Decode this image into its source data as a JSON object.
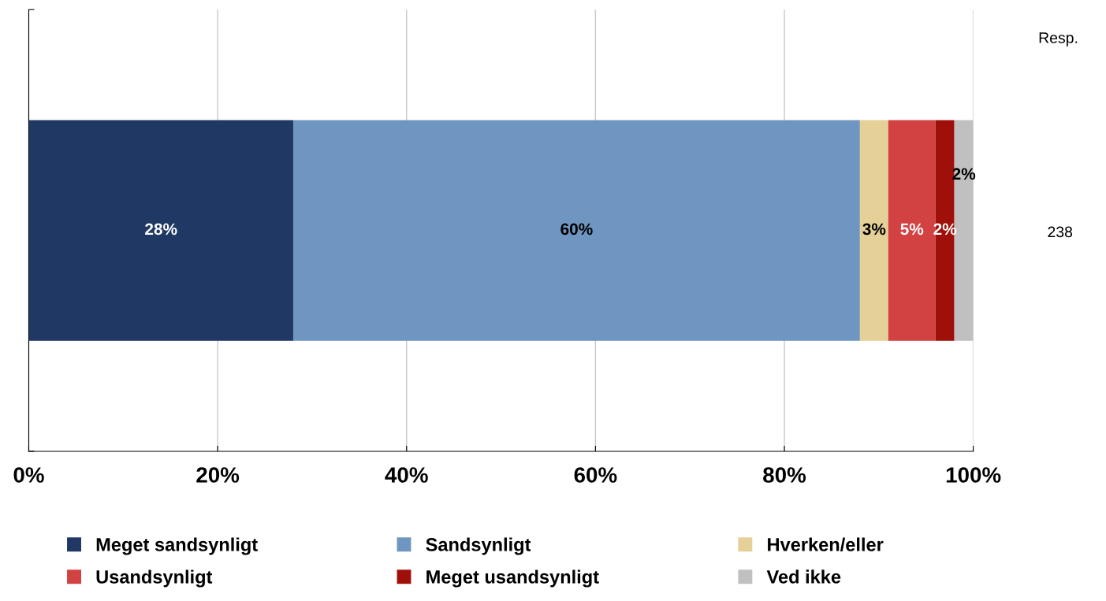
{
  "chart_data": {
    "type": "bar",
    "orientation": "horizontal",
    "stacked": true,
    "categories": [
      null
    ],
    "series": [
      {
        "name": "Meget sandsynligt",
        "color": "#203864",
        "values": [
          28
        ],
        "value_labels": [
          "28%"
        ]
      },
      {
        "name": "Sandsynligt",
        "color": "#6f96c0",
        "values": [
          60
        ],
        "value_labels": [
          "60%"
        ]
      },
      {
        "name": "Hverken/eller",
        "color": "#e5d098",
        "values": [
          3
        ],
        "value_labels": [
          "3%"
        ]
      },
      {
        "name": "Usandsynligt",
        "color": "#d24242",
        "values": [
          5
        ],
        "value_labels": [
          "5%"
        ]
      },
      {
        "name": "Meget usandsynligt",
        "color": "#a0100a",
        "values": [
          2
        ],
        "value_labels": [
          "2%"
        ]
      },
      {
        "name": "Ved ikke",
        "color": "#c0c0c0",
        "values": [
          2
        ],
        "value_labels": [
          "2%"
        ]
      }
    ],
    "xlim": [
      0,
      100
    ],
    "xticks": [
      {
        "value": 0,
        "label": "0%"
      },
      {
        "value": 20,
        "label": "20%"
      },
      {
        "value": 40,
        "label": "40%"
      },
      {
        "value": 60,
        "label": "60%"
      },
      {
        "value": 80,
        "label": "80%"
      },
      {
        "value": 100,
        "label": "100%"
      }
    ],
    "grid": "x",
    "legend": "bottom",
    "annotations": [
      "Resp.",
      "238"
    ]
  }
}
